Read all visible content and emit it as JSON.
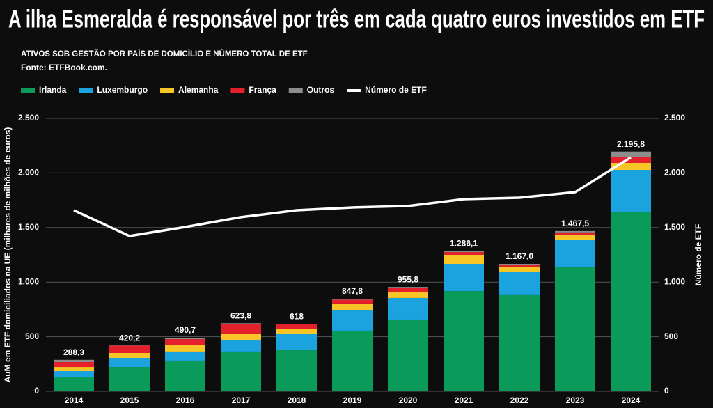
{
  "chart_data": {
    "type": "bar",
    "title": "A ilha Esmeralda é responsável por três em cada quatro euros investidos em ETF",
    "subtitle": "ATIVOS SOB GESTÃO POR PAÍS DE DOMICÍLIO E NÚMERO TOTAL DE ETF",
    "source": "Fonte: ETFBook.com.",
    "ylabel": "AuM em ETF domiciliados na UE (milhares de milhões de euros)",
    "y2label": "Número de ETF",
    "categories": [
      "2014",
      "2015",
      "2016",
      "2017",
      "2018",
      "2019",
      "2020",
      "2021",
      "2022",
      "2023",
      "2024"
    ],
    "series": [
      {
        "name": "Irlanda",
        "color": "#0a9a5a",
        "values": [
          134,
          223,
          281,
          364,
          376,
          555,
          657,
          918,
          887,
          1135,
          1639
        ]
      },
      {
        "name": "Luxemburgo",
        "color": "#1ba3e0",
        "values": [
          51,
          83,
          83,
          108,
          147,
          191,
          198,
          249,
          210,
          249,
          389
        ]
      },
      {
        "name": "Alemanha",
        "color": "#f8c527",
        "values": [
          38,
          45,
          57,
          57,
          51,
          58,
          57,
          83,
          45,
          51,
          64
        ]
      },
      {
        "name": "França",
        "color": "#e3202b",
        "values": [
          45,
          67,
          57,
          90,
          40,
          35,
          35,
          25,
          18,
          20,
          51
        ]
      },
      {
        "name": "Outros",
        "color": "#8c8c8c",
        "values": [
          20.3,
          2.2,
          12.7,
          4.8,
          4,
          8.8,
          8.8,
          11.1,
          7,
          12.5,
          52.8
        ]
      },
      {
        "name": "Número de ETF",
        "color": "#ffffff",
        "axis": "y2",
        "type": "line",
        "values": [
          1658,
          1422,
          1505,
          1595,
          1658,
          1684,
          1697,
          1760,
          1773,
          1824,
          2143
        ]
      }
    ],
    "totals": [
      288.3,
      420.2,
      490.7,
      623.8,
      618,
      847.8,
      955.8,
      1286.1,
      1167.0,
      1467.5,
      2195.8
    ],
    "total_labels": [
      "288,3",
      "420,2",
      "490,7",
      "623,8",
      "618",
      "847,8",
      "955,8",
      "1.286,1",
      "1.167,0",
      "1.467,5",
      "2.195,8"
    ],
    "ylim": [
      0,
      2500
    ],
    "yticks": [
      0,
      500,
      {
        "value": 1000,
        "label": "1.000"
      },
      {
        "value": 1500,
        "label": "1.500"
      },
      {
        "value": 2000,
        "label": "2.000"
      },
      {
        "value": 2500,
        "label": "2.500"
      }
    ],
    "y2lim": [
      0,
      2500
    ],
    "y2ticks": [
      0,
      500,
      {
        "value": 1000,
        "label": "1.000"
      },
      {
        "value": 1500,
        "label": "1.500"
      },
      {
        "value": 2000,
        "label": "2.000"
      },
      {
        "value": 2500,
        "label": "2.500"
      }
    ],
    "grid": true,
    "stacked": true,
    "legend": "top-left"
  }
}
